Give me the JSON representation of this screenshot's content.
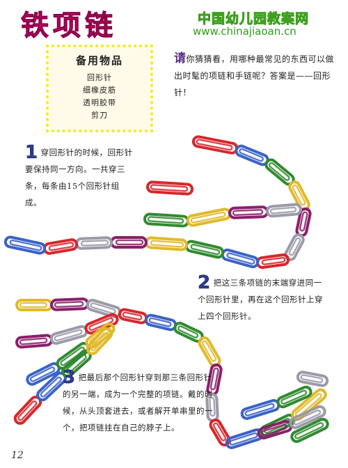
{
  "title": "铁项链",
  "watermark": {
    "site_name": "中国幼儿园教案网",
    "url": "www.chinajiaoan.cn"
  },
  "supplies": {
    "heading": "备用物品",
    "items": [
      "回形针",
      "细橡皮筋",
      "透明胶带",
      "剪刀"
    ]
  },
  "intro": {
    "lead_char": "请",
    "text": "你猜猜看，用哪种最常见的东西可以做出时髦的项链和手链呢？答案是——回形针！"
  },
  "steps": [
    {
      "number": "1",
      "text": "穿回形针的时候，回形针要保持同一方向。一共穿三条，每条由15个回形针组成。"
    },
    {
      "number": "2",
      "text": "把这三条项链的末端穿进同一个回形针里，再在这个回形针上穿上四个回形针。"
    },
    {
      "number": "3",
      "text": "把最后那个回形针穿到那三条回形针的另一端，成为一个完整的项链。戴的时候，从头顶套进去，或者解开单串里的一个，把项链挂在自己的脖子上。"
    }
  ],
  "page_number": "12",
  "colors": {
    "clip_colors": [
      "#d7262b",
      "#3a62c8",
      "#2f8a2f",
      "#e0b92a",
      "#8a1f6a",
      "#9a9aa8"
    ],
    "title": "#e6007e"
  }
}
